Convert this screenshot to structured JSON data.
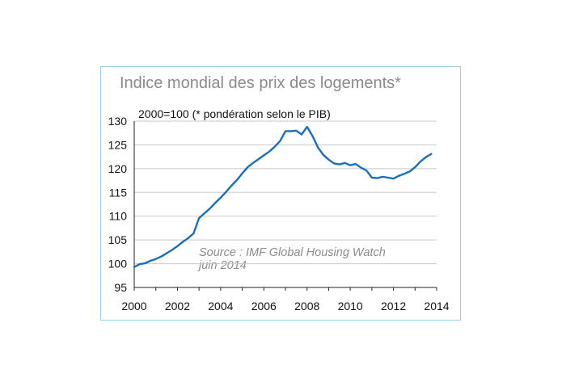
{
  "chart_data": {
    "type": "line",
    "title": "Indice mondial des prix des logements*",
    "subtitle": "2000=100 (* pondération selon le PIB)",
    "source": [
      "Source : IMF Global Housing Watch",
      "juin 2014"
    ],
    "xlim": [
      2000,
      2014
    ],
    "ylim": [
      95,
      130
    ],
    "x_ticks": [
      2000,
      2002,
      2004,
      2006,
      2008,
      2010,
      2012,
      2014
    ],
    "y_ticks": [
      95,
      100,
      105,
      110,
      115,
      120,
      125,
      130
    ],
    "grid": true,
    "line_color": "#1a6fbd",
    "series": [
      {
        "x": [
          2000.0,
          2000.25,
          2000.5,
          2000.75,
          2001.0,
          2001.25,
          2001.5,
          2001.75,
          2002.0,
          2002.25,
          2002.5,
          2002.75,
          2003.0,
          2003.25,
          2003.5,
          2003.75,
          2004.0,
          2004.25,
          2004.5,
          2004.75,
          2005.0,
          2005.25,
          2005.5,
          2005.75,
          2006.0,
          2006.25,
          2006.5,
          2006.75,
          2007.0,
          2007.25,
          2007.5,
          2007.75,
          2008.0,
          2008.25,
          2008.5,
          2008.75,
          2009.0,
          2009.25,
          2009.5,
          2009.75,
          2010.0,
          2010.25,
          2010.5,
          2010.75,
          2011.0,
          2011.25,
          2011.5,
          2011.75,
          2012.0,
          2012.25,
          2012.5,
          2012.75,
          2013.0,
          2013.25,
          2013.5,
          2013.75
        ],
        "values": [
          99.3,
          99.9,
          100.1,
          100.6,
          101.0,
          101.5,
          102.2,
          102.9,
          103.7,
          104.6,
          105.4,
          106.4,
          109.6,
          110.6,
          111.6,
          112.8,
          113.9,
          115.1,
          116.4,
          117.6,
          119.0,
          120.3,
          121.2,
          122.0,
          122.8,
          123.6,
          124.6,
          125.8,
          127.9,
          127.9,
          128.0,
          127.2,
          128.8,
          126.9,
          124.5,
          122.9,
          121.9,
          121.1,
          120.9,
          121.2,
          120.7,
          121.0,
          120.2,
          119.6,
          118.1,
          118.0,
          118.3,
          118.1,
          117.9,
          118.5,
          118.9,
          119.4,
          120.3,
          121.5,
          122.4,
          123.1
        ]
      }
    ]
  }
}
